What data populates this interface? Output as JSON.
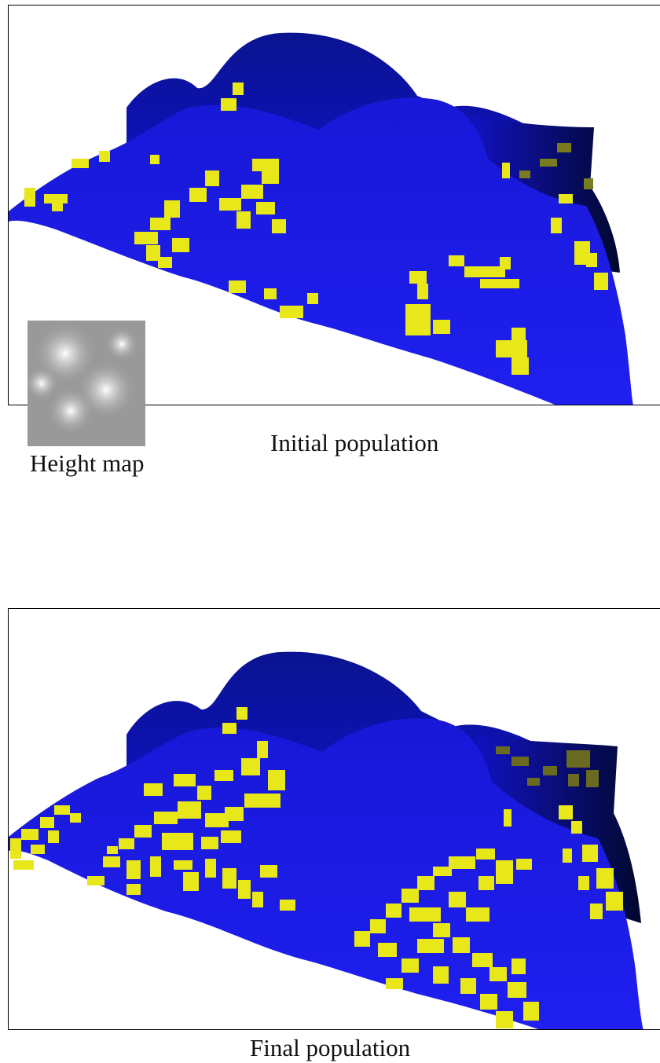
{
  "colors": {
    "surface_front": "#1a1ae6",
    "surface_back": "#0a1aa8",
    "surface_dark": "#000b3c",
    "cells": "#e7e71a",
    "cells_dark": "#6a6a1a",
    "frame": "#000000",
    "background": "#ffffff"
  },
  "panels": [
    {
      "id": "initial",
      "caption": "Initial population",
      "height_map_label": "Height map",
      "cell_density": "sparse"
    },
    {
      "id": "final",
      "caption": "Final population",
      "cell_density": "dense"
    }
  ]
}
